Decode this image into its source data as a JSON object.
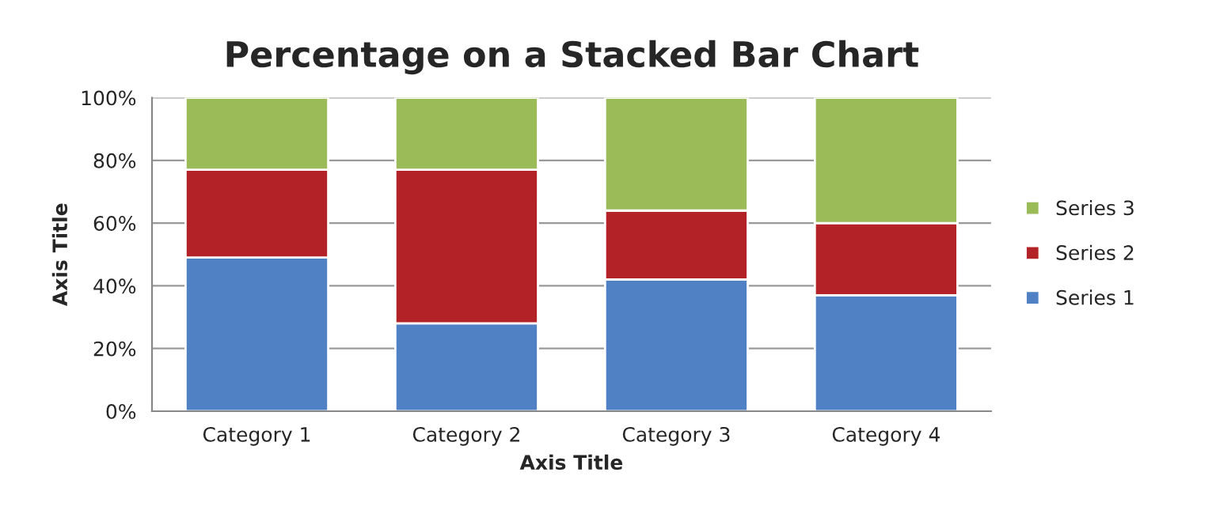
{
  "chart_data": {
    "type": "bar",
    "title": "Percentage on a Stacked Bar Chart",
    "xlabel": "Axis Title",
    "ylabel": "Axis Title",
    "categories": [
      "Category 1",
      "Category 2",
      "Category 3",
      "Category 4"
    ],
    "stacked": true,
    "series": [
      {
        "name": "Series 1",
        "color": "#4f81c4",
        "values": [
          49,
          28,
          42,
          37
        ]
      },
      {
        "name": "Series 2",
        "color": "#b22226",
        "values": [
          28,
          49,
          22,
          23
        ]
      },
      {
        "name": "Series 3",
        "color": "#9bbb59",
        "values": [
          23,
          23,
          36,
          40
        ]
      }
    ],
    "ylim": [
      0,
      100
    ],
    "yticks": [
      {
        "value": 0,
        "label": "0%"
      },
      {
        "value": 20,
        "label": "20%"
      },
      {
        "value": 40,
        "label": "40%"
      },
      {
        "value": 60,
        "label": "60%"
      },
      {
        "value": 80,
        "label": "80%"
      },
      {
        "value": 100,
        "label": "100%"
      }
    ],
    "grid": "y",
    "legend": "right"
  }
}
